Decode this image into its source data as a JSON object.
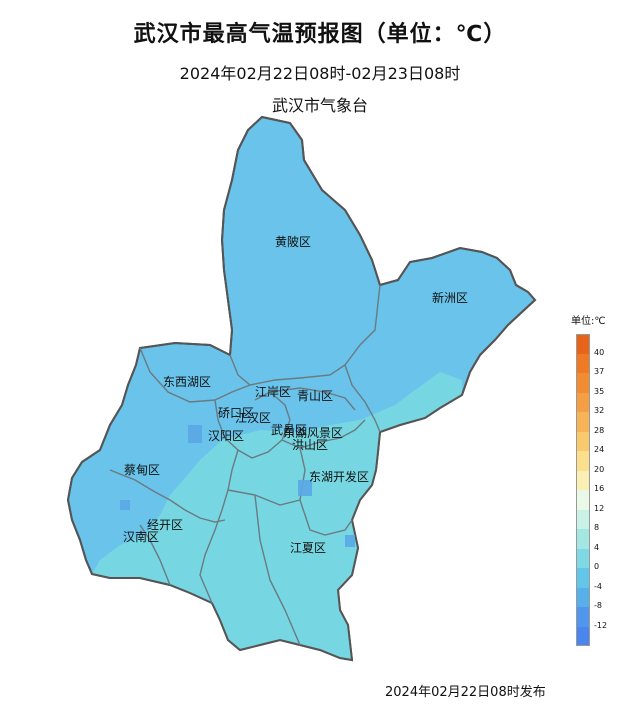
{
  "title": "武汉市最高气温预报图（单位：℃）",
  "subtitle": "2024年02月22日08时-02月23日08时",
  "agency": "武汉市气象台",
  "footer": "2024年02月22日08时发布",
  "legend": {
    "title": "单位:℃",
    "ticks": [
      "40",
      "37",
      "35",
      "32",
      "28",
      "24",
      "20",
      "16",
      "12",
      "8",
      "4",
      "0",
      "-4",
      "-8",
      "-12"
    ],
    "colors": [
      "#e8641a",
      "#ef7a24",
      "#f28c33",
      "#f59f45",
      "#f7b358",
      "#f9c96e",
      "#fbdf8c",
      "#fcefb6",
      "#eaf8e8",
      "#c9f1e5",
      "#a3e6e2",
      "#7fd9e4",
      "#63c6e8",
      "#57b0ea",
      "#4f96ec",
      "#4a86ee"
    ]
  },
  "districts": [
    {
      "name": "黄陂区"
    },
    {
      "name": "新洲区"
    },
    {
      "name": "东西湖区"
    },
    {
      "name": "江岸区"
    },
    {
      "name": "青山区"
    },
    {
      "name": "硚口区"
    },
    {
      "name": "江汉区"
    },
    {
      "name": "汉阳区"
    },
    {
      "name": "武昌区"
    },
    {
      "name": "东湖风景区"
    },
    {
      "name": "洪山区"
    },
    {
      "name": "蔡甸区"
    },
    {
      "name": "东湖开发区"
    },
    {
      "name": "经开区"
    },
    {
      "name": "汉南区"
    },
    {
      "name": "江夏区"
    }
  ]
}
